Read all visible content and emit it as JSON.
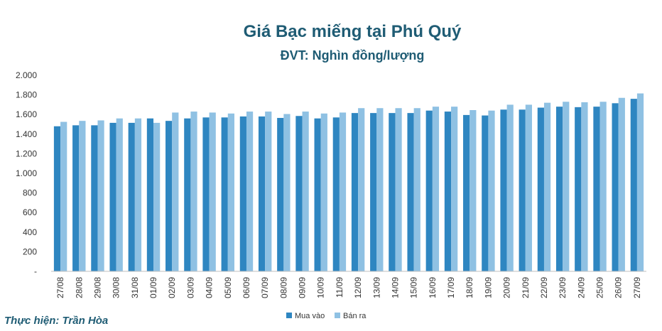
{
  "chart_data": {
    "type": "bar",
    "title": "Giá Bạc miếng tại Phú Quý",
    "subtitle": "ĐVT: Nghìn đồng/lượng",
    "categories": [
      "27/08",
      "28/08",
      "29/08",
      "30/08",
      "31/08",
      "01/09",
      "02/09",
      "03/09",
      "04/09",
      "05/09",
      "06/09",
      "07/09",
      "08/09",
      "09/09",
      "10/09",
      "11/09",
      "12/09",
      "13/09",
      "14/09",
      "15/09",
      "16/09",
      "17/09",
      "18/09",
      "19/09",
      "20/09",
      "21/09",
      "22/09",
      "23/09",
      "24/09",
      "25/09",
      "26/09",
      "27/09"
    ],
    "series": [
      {
        "name": "Mua vào",
        "color": "#2e86c1",
        "values": [
          1480,
          1490,
          1490,
          1515,
          1515,
          1560,
          1535,
          1560,
          1570,
          1570,
          1580,
          1580,
          1565,
          1585,
          1560,
          1570,
          1615,
          1615,
          1615,
          1615,
          1640,
          1630,
          1595,
          1590,
          1650,
          1650,
          1670,
          1680,
          1675,
          1680,
          1715,
          1760
        ]
      },
      {
        "name": "Bán ra",
        "color": "#8fc1e3",
        "values": [
          1525,
          1535,
          1540,
          1560,
          1560,
          1515,
          1620,
          1630,
          1620,
          1610,
          1630,
          1630,
          1605,
          1630,
          1610,
          1620,
          1665,
          1665,
          1665,
          1665,
          1680,
          1680,
          1645,
          1640,
          1700,
          1700,
          1720,
          1730,
          1725,
          1730,
          1770,
          1815
        ]
      }
    ],
    "ylim": [
      0,
      2000
    ],
    "yticks": [
      "-",
      "200",
      "400",
      "600",
      "800",
      "1.000",
      "1.200",
      "1.400",
      "1.600",
      "1.800",
      "2.000"
    ],
    "grid": false,
    "legend_position": "bottom"
  },
  "credit": "Thực hiện: Trần Hòa"
}
